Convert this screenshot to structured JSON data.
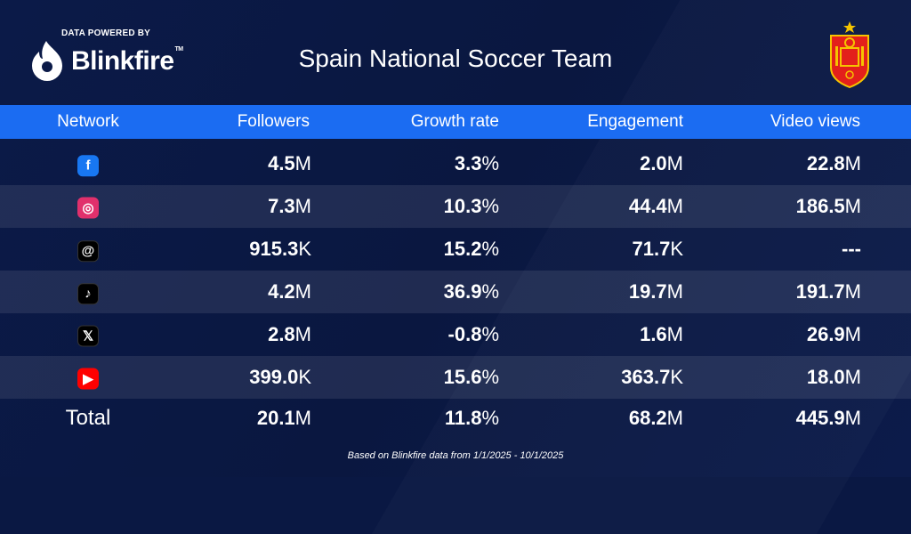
{
  "brand": {
    "powered_by": "DATA POWERED BY",
    "name": "Blinkfire",
    "tm": "TM"
  },
  "title": "Spain National Soccer Team",
  "colors": {
    "background": "#0a1843",
    "header_bar": "#1b6cf2"
  },
  "columns": [
    "Network",
    "Followers",
    "Growth rate",
    "Engagement",
    "Video views"
  ],
  "rows": [
    {
      "network": "Facebook",
      "icon": "facebook-icon",
      "icon_color": "#1877f2",
      "glyph": "f",
      "followers": {
        "v": "4.5",
        "u": "M"
      },
      "growth": {
        "v": "3.3",
        "u": "%"
      },
      "engagement": {
        "v": "2.0",
        "u": "M"
      },
      "video": {
        "v": "22.8",
        "u": "M"
      }
    },
    {
      "network": "Instagram",
      "icon": "instagram-icon",
      "icon_color": "#e1306c",
      "glyph": "◎",
      "followers": {
        "v": "7.3",
        "u": "M"
      },
      "growth": {
        "v": "10.3",
        "u": "%"
      },
      "engagement": {
        "v": "44.4",
        "u": "M"
      },
      "video": {
        "v": "186.5",
        "u": "M"
      }
    },
    {
      "network": "Threads",
      "icon": "threads-icon",
      "icon_color": "#000000",
      "glyph": "@",
      "followers": {
        "v": "915.3",
        "u": "K"
      },
      "growth": {
        "v": "15.2",
        "u": "%"
      },
      "engagement": {
        "v": "71.7",
        "u": "K"
      },
      "video": {
        "v": "---",
        "u": ""
      }
    },
    {
      "network": "TikTok",
      "icon": "tiktok-icon",
      "icon_color": "#000000",
      "glyph": "♪",
      "followers": {
        "v": "4.2",
        "u": "M"
      },
      "growth": {
        "v": "36.9",
        "u": "%"
      },
      "engagement": {
        "v": "19.7",
        "u": "M"
      },
      "video": {
        "v": "191.7",
        "u": "M"
      }
    },
    {
      "network": "X",
      "icon": "x-icon",
      "icon_color": "#000000",
      "glyph": "𝕏",
      "followers": {
        "v": "2.8",
        "u": "M"
      },
      "growth": {
        "v": "-0.8",
        "u": "%"
      },
      "engagement": {
        "v": "1.6",
        "u": "M"
      },
      "video": {
        "v": "26.9",
        "u": "M"
      }
    },
    {
      "network": "YouTube",
      "icon": "youtube-icon",
      "icon_color": "#ff0000",
      "glyph": "▶",
      "followers": {
        "v": "399.0",
        "u": "K"
      },
      "growth": {
        "v": "15.6",
        "u": "%"
      },
      "engagement": {
        "v": "363.7",
        "u": "K"
      },
      "video": {
        "v": "18.0",
        "u": "M"
      }
    }
  ],
  "total": {
    "label": "Total",
    "followers": {
      "v": "20.1",
      "u": "M"
    },
    "growth": {
      "v": "11.8",
      "u": "%"
    },
    "engagement": {
      "v": "68.2",
      "u": "M"
    },
    "video": {
      "v": "445.9",
      "u": "M"
    }
  },
  "footer": "Based on Blinkfire data from 1/1/2025 - 10/1/2025"
}
